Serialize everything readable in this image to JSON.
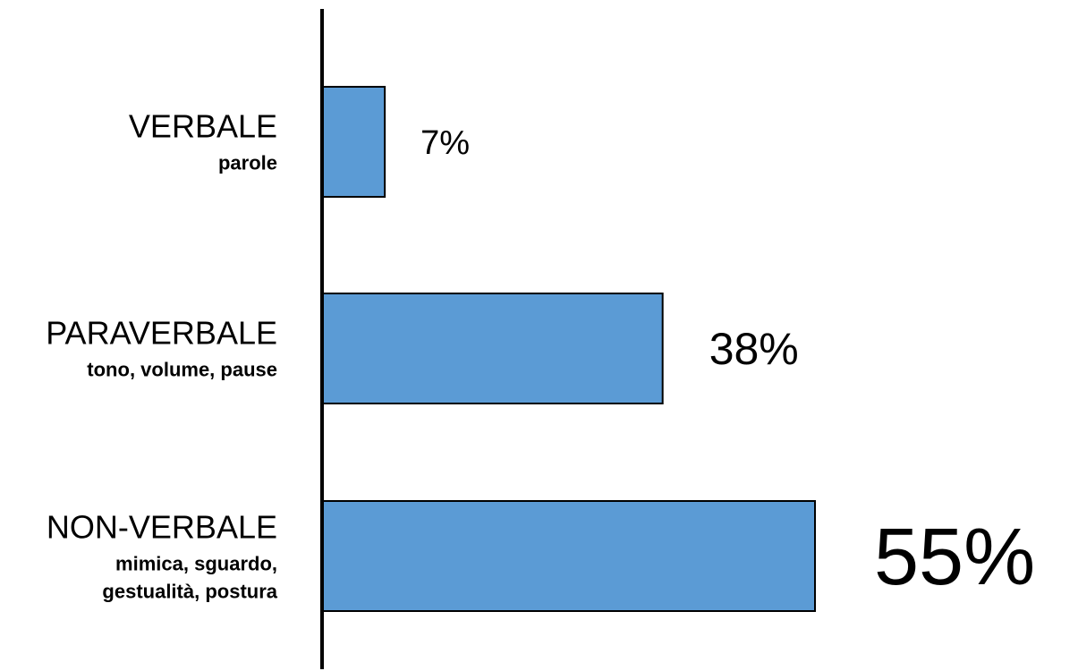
{
  "chart_data": {
    "type": "bar",
    "orientation": "horizontal",
    "categories": [
      {
        "name": "VERBALE",
        "sub": [
          "parole"
        ]
      },
      {
        "name": "PARAVERBALE",
        "sub": [
          "tono, volume, pause"
        ]
      },
      {
        "name": "NON-VERBALE",
        "sub": [
          "mimica, sguardo,",
          "gestualità, postura"
        ]
      }
    ],
    "values": [
      7,
      38,
      55
    ],
    "value_labels": [
      "7%",
      "38%",
      "55%"
    ],
    "bar_color": "#5B9BD5",
    "value_label_colors": [
      "#000000",
      "#000000",
      "#0AA6E6"
    ],
    "title": "",
    "xlabel": "",
    "ylabel": "",
    "grid": false,
    "legend": "none"
  }
}
